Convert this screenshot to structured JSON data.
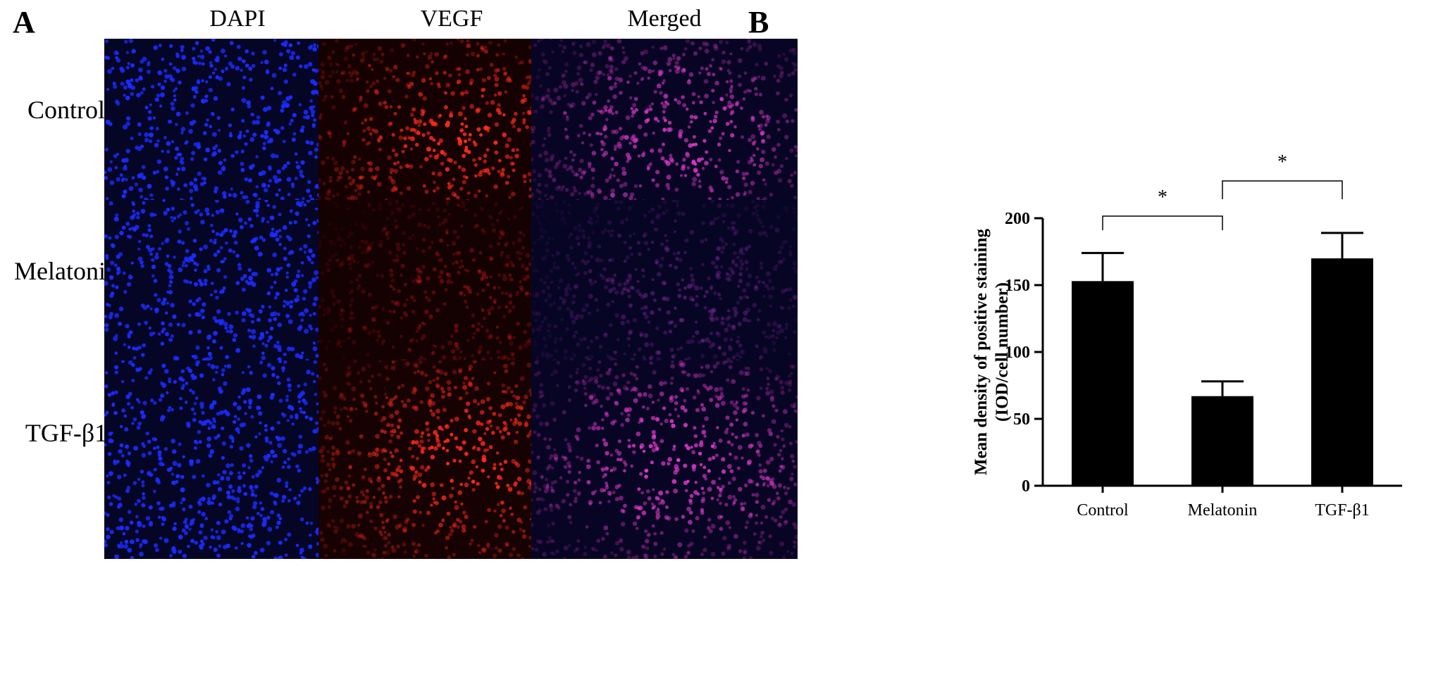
{
  "panel_a": {
    "letter": "A",
    "columns": [
      "DAPI",
      "VEGF",
      "Merged"
    ],
    "rows": [
      "Control",
      "Melatonin",
      "TGF-β1"
    ],
    "images": [
      [
        {
          "stain": "DAPI",
          "group": "Control",
          "tint": "#1a2cff",
          "background": "#050526",
          "vegf_intensity": 0
        },
        {
          "stain": "VEGF",
          "group": "Control",
          "tint": "#ff2a1a",
          "background": "#150102",
          "vegf_intensity": 0.95
        },
        {
          "stain": "Merged",
          "group": "Control",
          "tint": "#e03acb",
          "background": "#080524",
          "vegf_intensity": 0.9
        }
      ],
      [
        {
          "stain": "DAPI",
          "group": "Melatonin",
          "tint": "#1a2cff",
          "background": "#050526",
          "vegf_intensity": 0
        },
        {
          "stain": "VEGF",
          "group": "Melatonin",
          "tint": "#d61818",
          "background": "#140102",
          "vegf_intensity": 0.45
        },
        {
          "stain": "Merged",
          "group": "Melatonin",
          "tint": "#9c2fb4",
          "background": "#070524",
          "vegf_intensity": 0.45
        }
      ],
      [
        {
          "stain": "DAPI",
          "group": "TGF-β1",
          "tint": "#1a2cff",
          "background": "#050526",
          "vegf_intensity": 0
        },
        {
          "stain": "VEGF",
          "group": "TGF-β1",
          "tint": "#ff2a1a",
          "background": "#170203",
          "vegf_intensity": 1.0
        },
        {
          "stain": "Merged",
          "group": "TGF-β1",
          "tint": "#e83ad0",
          "background": "#080524",
          "vegf_intensity": 0.95
        }
      ]
    ],
    "colors": {
      "dapi_blue": "#1a2cff",
      "vegf_red": "#ff2a1a",
      "merged_magenta": "#e03acb",
      "scale_bar": "#ffffff"
    }
  },
  "panel_b": {
    "letter": "B",
    "chart_data": {
      "type": "bar",
      "categories": [
        "Control",
        "Melatonin",
        "TGF-β1"
      ],
      "values": [
        153,
        67,
        170
      ],
      "error": [
        21,
        11,
        19
      ],
      "ylabel_line1": "Mean density of positive staining",
      "ylabel_line2": "(IOD/cell number)",
      "xlabel": "",
      "ylim": [
        0,
        200
      ],
      "yticks": [
        0,
        50,
        100,
        150,
        200
      ],
      "bar_color": "#000000",
      "grid": false,
      "significance": [
        {
          "from": 0,
          "to": 1,
          "label": "*"
        },
        {
          "from": 1,
          "to": 2,
          "label": "*"
        }
      ]
    }
  }
}
